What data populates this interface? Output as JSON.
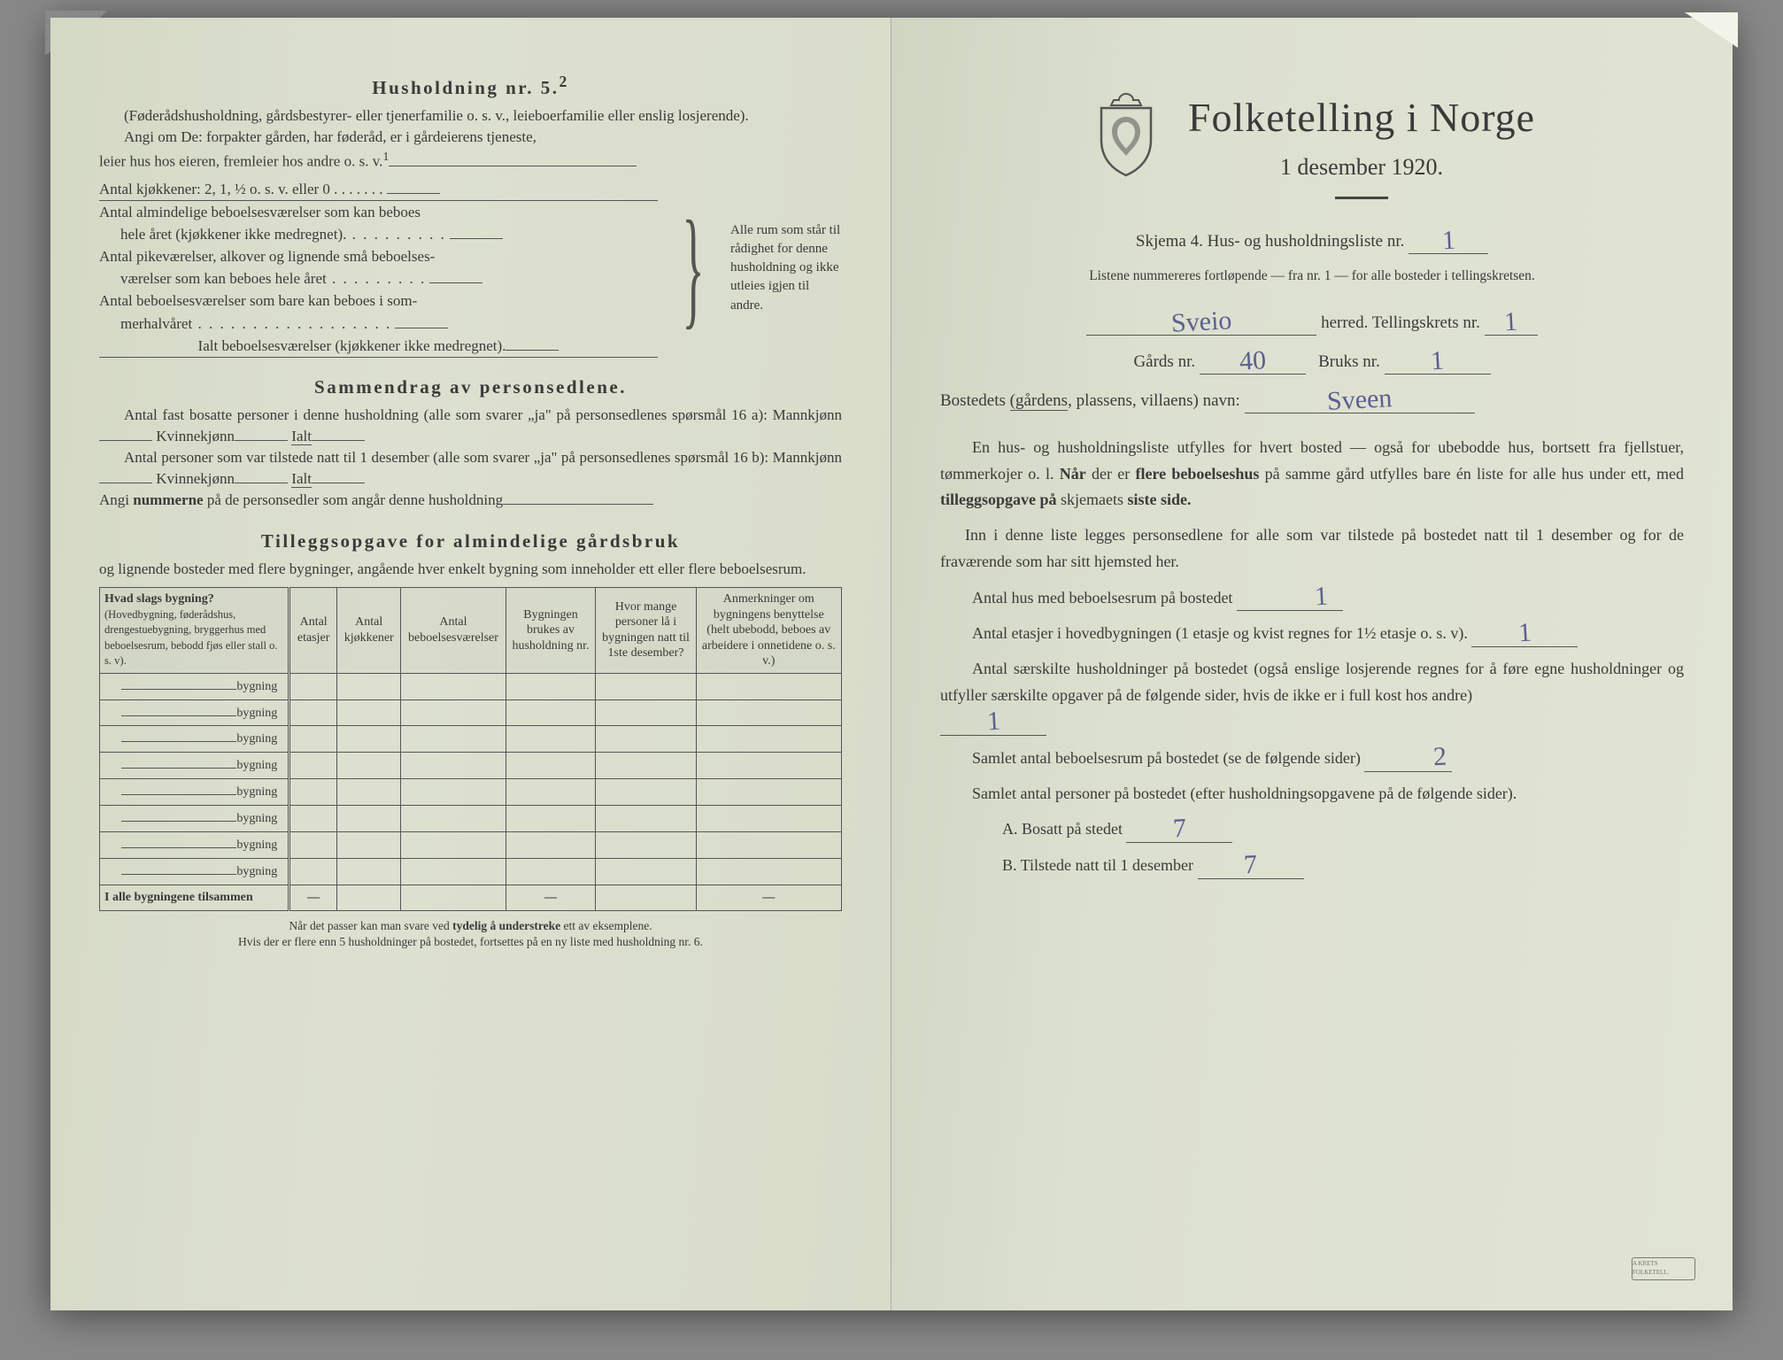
{
  "left": {
    "heading1": "Husholdning nr. 5.",
    "heading1_sup": "2",
    "p1": "(Føderådshusholdning, gårdsbestyrer- eller tjenerfamilie o. s. v., leieboerfamilie eller enslig losjerende).",
    "p2a": "Angi om De:  forpakter gården, har føderåd, er i gårdeierens tjeneste,",
    "p2b": "leier hus hos eieren, fremleier hos andre o. s. v.",
    "p2b_sup": "1",
    "brace": {
      "l1": "Antal kjøkkener: 2, 1, ½ o. s. v. eller 0 .",
      "l2a": "Antal almindelige beboelsesværelser som kan beboes",
      "l2b": "hele året (kjøkkener ikke medregnet).",
      "l3a": "Antal pikeværelser, alkover og lignende små beboelses-",
      "l3b": "værelser som kan beboes hele året",
      "l4a": "Antal beboelsesværelser som bare kan beboes i som-",
      "l4b": "merhalvåret",
      "l5": "Ialt beboelsesværelser  (kjøkkener ikke medregnet).",
      "right": "Alle rum som står til rådighet for denne husholdning og ikke utleies igjen til andre."
    },
    "heading2": "Sammendrag av personsedlene.",
    "s1": "Antal fast bosatte personer i denne husholdning (alle som svarer „ja\" på personsedlenes spørsmål 16 a): Mannkjønn",
    "s1b": "Kvinnekjønn",
    "s1c": "Ialt",
    "s2": "Antal personer som var tilstede natt til 1 desember (alle som svarer „ja\" på personsedlenes spørsmål 16 b): Mannkjønn",
    "s3": "Angi nummerne på de personsedler som angår denne husholdning",
    "heading3": "Tilleggsopgave for almindelige gårdsbruk",
    "t1": "og lignende bosteder med flere bygninger, angående hver enkelt bygning som inneholder ett eller flere beboelsesrum.",
    "table": {
      "headers": [
        "Hvad slags bygning?\n(Hovedbygning, føderådshus, drengestuebygning, bryggerhus med beboelsesrum, bebodd fjøs eller stall o. s. v).",
        "Antal etasjer",
        "Antal kjøkkener",
        "Antal beboelsesværelser",
        "Bygningen brukes av husholdning nr.",
        "Hvor mange personer lå i bygningen natt til 1ste desember?",
        "Anmerkninger om bygningens benyttelse (helt ubebodd, beboes av arbeidere i onnetidene o. s. v.)"
      ],
      "row_suffix": "bygning",
      "rows": 8,
      "total_label": "I alle bygningene tilsammen",
      "dash": "—"
    },
    "footnote": "Når det passer kan man svare ved tydelig å understreke ett av eksemplene.\nHvis der er flere enn 5 husholdninger på bostedet, fortsettes på en ny liste med husholdning nr. 6."
  },
  "right": {
    "title": "Folketelling i Norge",
    "subtitle": "1 desember 1920.",
    "form_line": "Skjema 4.  Hus- og husholdningsliste nr.",
    "form_nr": "1",
    "listnote": "Listene nummereres fortløpende — fra nr. 1 — for alle bosteder i tellingskretsen.",
    "herred_val": "Sveio",
    "herred_lbl": "herred.  Tellingskrets nr.",
    "krets_nr": "1",
    "gard_lbl": "Gårds nr.",
    "gard_nr": "40",
    "bruk_lbl": "Bruks nr.",
    "bruk_nr": "1",
    "bosted_lbl": "Bostedets (gårdens, plassens, villaens) navn:",
    "bosted_val": "Sveen",
    "body1": "En hus- og husholdningsliste utfylles for hvert bosted — også for ubebodde hus, bortsett fra fjellstuer, tømmerkojer o. l.  Når der er flere beboelseshus på samme gård utfylles bare én liste for alle hus under ett, med tilleggsopgave på skjemaets siste side.",
    "body2": "Inn i denne liste legges personsedlene for alle som var tilstede på bostedet natt til 1 desember og for de fraværende som har sitt hjemsted her.",
    "q1": "Antal hus med beboelsesrum på bostedet",
    "q1v": "1",
    "q2": "Antal etasjer i hovedbygningen (1 etasje og kvist regnes for 1½ etasje o. s. v).",
    "q2v": "1",
    "q3": "Antal særskilte husholdninger på bostedet (også enslige losjerende regnes for å føre egne husholdninger og utfyller særskilte opgaver på de følgende sider, hvis de ikke er i full kost hos andre)",
    "q3v": "1",
    "q4": "Samlet antal beboelsesrum på bostedet (se de følgende sider)",
    "q4v": "2",
    "q5": "Samlet antal personer på bostedet (efter husholdningsopgavene på de følgende sider).",
    "qA": "A.  Bosatt på stedet",
    "qAv": "7",
    "qB": "B.  Tilstede natt til 1 desember",
    "qBv": "7",
    "stamp": "A KRETS FOLKETELL."
  }
}
